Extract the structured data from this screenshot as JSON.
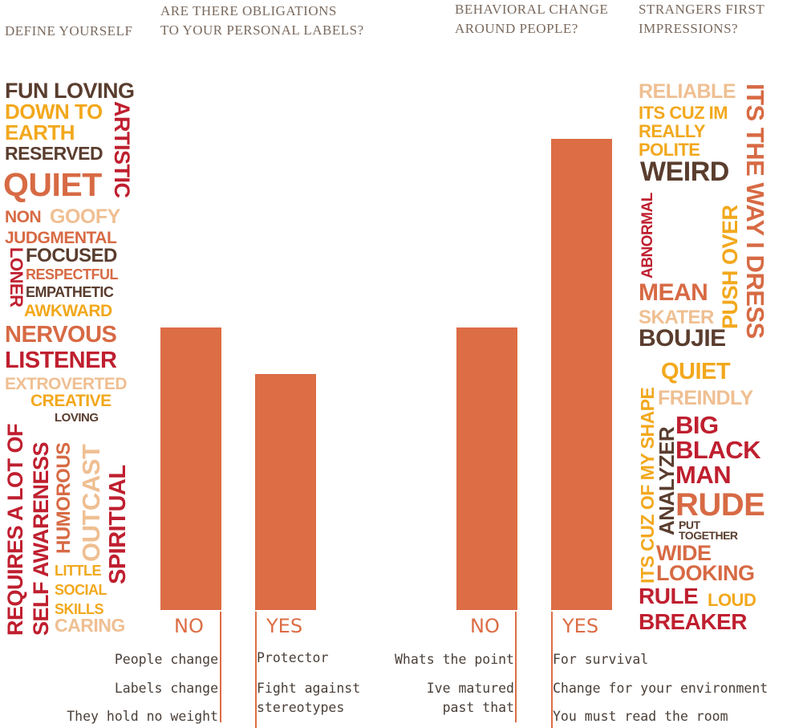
{
  "headers": {
    "define": "DEFINE YOURSELF",
    "obligations_l1": "ARE THERE OBLIGATIONS",
    "obligations_l2": "TO YOUR PERSONAL LABELS?",
    "behavior_l1": "BEHAVIORAL CHANGE",
    "behavior_l2": "AROUND PEOPLE?",
    "strangers_l1": "STRANGERS FIRST",
    "strangers_l2": "IMPRESSIONS?"
  },
  "colors": {
    "bar": "#dc6d45",
    "red": "#bf1f2f",
    "brown": "#5a3d2e",
    "yellow": "#f2a81d",
    "peach": "#efbf92"
  },
  "chart_data": [
    {
      "type": "bar",
      "title": "ARE THERE OBLIGATIONS TO YOUR PERSONAL LABELS?",
      "categories": [
        "NO",
        "YES"
      ],
      "values": [
        0.6,
        0.5
      ],
      "notes": {
        "NO": [
          "People change",
          "Labels change",
          "They hold no weight"
        ],
        "YES": [
          "Protector",
          "Fight against",
          "stereotypes"
        ]
      }
    },
    {
      "type": "bar",
      "title": "BEHAVIORAL CHANGE AROUND PEOPLE?",
      "categories": [
        "NO",
        "YES"
      ],
      "values": [
        0.6,
        1.0
      ],
      "notes": {
        "NO": [
          "Whats the point",
          "Ive matured",
          "past that"
        ],
        "YES": [
          "For survival",
          "Change for your environment",
          "You must read the room"
        ]
      }
    }
  ],
  "define_words": [
    "FUN LOVING",
    "DOWN TO",
    "EARTH",
    "ARTISTIC",
    "RESERVED",
    "QUIET",
    "NON",
    "GOOFY",
    "JUDGMENTAL",
    "FOCUSED",
    "LONER",
    "RESPECTFUL",
    "EMPATHETIC",
    "AWKWARD",
    "NERVOUS",
    "LISTENER",
    "EXTROVERTED",
    "CREATIVE",
    "REQUIRES A LOT OF",
    "SELF AWARENESS",
    "LOVING",
    "HUMOROUS",
    "OUTCAST",
    "SPIRITUAL",
    "LITTLE",
    "SOCIAL",
    "SKILLS",
    "CARING"
  ],
  "strangers_words": [
    "RELIABLE",
    "ITS CUZ IM",
    "REALLY",
    "POLITE",
    "ITS THE WAY I DRESS",
    "WEIRD",
    "ABNORMAL",
    "PUSH OVER",
    "MEAN",
    "SKATER",
    "BOUJIE",
    "ITS CUZ OF MY SHAPE",
    "QUIET",
    "FREINDLY",
    "ANALYZER",
    "BIG",
    "BLACK",
    "MAN",
    "RUDE",
    "PUT",
    "TOGETHER",
    "WIDE",
    "LOOKING",
    "RULE",
    "LOUD",
    "BREAKER"
  ]
}
